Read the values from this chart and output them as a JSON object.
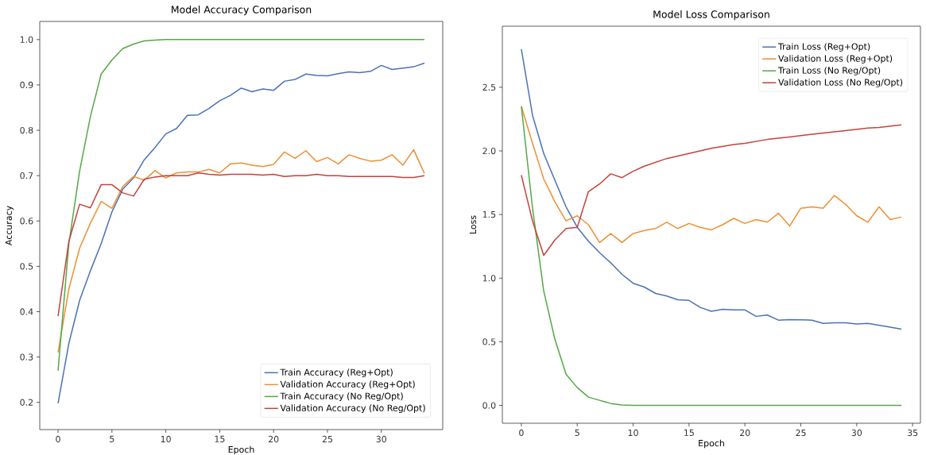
{
  "chart_data": [
    {
      "type": "line",
      "title": "Model Accuracy Comparison",
      "xlabel": "Epoch",
      "ylabel": "Accuracy",
      "x": [
        0,
        1,
        2,
        3,
        4,
        5,
        6,
        7,
        8,
        9,
        10,
        11,
        12,
        13,
        14,
        15,
        16,
        17,
        18,
        19,
        20,
        21,
        22,
        23,
        24,
        25,
        26,
        27,
        28,
        29,
        30,
        31,
        32,
        33,
        34
      ],
      "xlim": [
        -1.7,
        35.7
      ],
      "ylim": [
        0.14,
        1.04
      ],
      "xticks": [
        0,
        5,
        10,
        15,
        20,
        25,
        30
      ],
      "yticks": [
        0.2,
        0.3,
        0.4,
        0.5,
        0.6,
        0.7,
        0.8,
        0.9,
        {
          "value": 1,
          "label": "1.0"
        }
      ],
      "legend": "bottom right",
      "line_style": "solid",
      "series": [
        {
          "name": "Train Accuracy (Reg+Opt)",
          "color": "#4a72b8",
          "values": [
            0.198,
            0.33,
            0.425,
            0.49,
            0.55,
            0.62,
            0.67,
            0.695,
            0.735,
            0.762,
            0.792,
            0.804,
            0.833,
            0.834,
            0.848,
            0.865,
            0.877,
            0.893,
            0.885,
            0.891,
            0.888,
            0.908,
            0.912,
            0.924,
            0.921,
            0.92,
            0.925,
            0.929,
            0.927,
            0.93,
            0.943,
            0.934,
            0.937,
            0.94,
            0.948
          ]
        },
        {
          "name": "Validation Accuracy (Reg+Opt)",
          "color": "#ee8f35",
          "values": [
            0.31,
            0.45,
            0.54,
            0.595,
            0.643,
            0.628,
            0.676,
            0.698,
            0.69,
            0.711,
            0.695,
            0.706,
            0.708,
            0.708,
            0.714,
            0.706,
            0.726,
            0.728,
            0.723,
            0.72,
            0.725,
            0.752,
            0.738,
            0.755,
            0.731,
            0.74,
            0.726,
            0.746,
            0.738,
            0.732,
            0.734,
            0.746,
            0.723,
            0.757,
            0.705
          ]
        },
        {
          "name": "Train Accuracy (No Reg/Opt)",
          "color": "#55a846",
          "values": [
            0.27,
            0.55,
            0.71,
            0.83,
            0.924,
            0.955,
            0.98,
            0.99,
            0.997,
            0.999,
            1.0,
            1.0,
            1.0,
            1.0,
            1.0,
            1.0,
            1.0,
            1.0,
            1.0,
            1.0,
            1.0,
            1.0,
            1.0,
            1.0,
            1.0,
            1.0,
            1.0,
            1.0,
            1.0,
            1.0,
            1.0,
            1.0,
            1.0,
            1.0,
            1.0
          ]
        },
        {
          "name": "Validation Accuracy (No Reg/Opt)",
          "color": "#c4423c",
          "values": [
            0.39,
            0.555,
            0.637,
            0.629,
            0.68,
            0.68,
            0.662,
            0.655,
            0.692,
            0.697,
            0.7,
            0.7,
            0.7,
            0.706,
            0.703,
            0.701,
            0.703,
            0.703,
            0.703,
            0.701,
            0.703,
            0.698,
            0.7,
            0.7,
            0.703,
            0.7,
            0.7,
            0.698,
            0.698,
            0.698,
            0.698,
            0.698,
            0.696,
            0.696,
            0.7
          ]
        }
      ]
    },
    {
      "type": "line",
      "title": "Model Loss Comparison",
      "xlabel": "Epoch",
      "ylabel": "Loss",
      "x": [
        0,
        1,
        2,
        3,
        4,
        5,
        6,
        7,
        8,
        9,
        10,
        11,
        12,
        13,
        14,
        15,
        16,
        17,
        18,
        19,
        20,
        21,
        22,
        23,
        24,
        25,
        26,
        27,
        28,
        29,
        30,
        31,
        32,
        33,
        34
      ],
      "xlim": [
        -1.7,
        35.7
      ],
      "ylim": [
        -0.14,
        2.98
      ],
      "xticks": [
        0,
        5,
        10,
        15,
        20,
        25,
        30,
        35
      ],
      "yticks": [
        {
          "value": 0,
          "label": "0.0"
        },
        0.5,
        {
          "value": 1,
          "label": "1.0"
        },
        1.5,
        {
          "value": 2,
          "label": "2.0"
        },
        2.5
      ],
      "legend": "top right",
      "line_style": "solid",
      "series": [
        {
          "name": "Train Loss (Reg+Opt)",
          "color": "#4a72b8",
          "values": [
            2.8,
            2.28,
            1.98,
            1.77,
            1.56,
            1.4,
            1.29,
            1.2,
            1.12,
            1.03,
            0.96,
            0.93,
            0.88,
            0.86,
            0.83,
            0.825,
            0.77,
            0.74,
            0.755,
            0.75,
            0.75,
            0.7,
            0.71,
            0.67,
            0.675,
            0.673,
            0.67,
            0.645,
            0.65,
            0.65,
            0.64,
            0.645,
            0.63,
            0.615,
            0.6
          ]
        },
        {
          "name": "Validation Loss (Reg+Opt)",
          "color": "#ee8f35",
          "values": [
            2.35,
            2.06,
            1.78,
            1.6,
            1.45,
            1.49,
            1.42,
            1.28,
            1.35,
            1.28,
            1.35,
            1.375,
            1.39,
            1.44,
            1.39,
            1.43,
            1.4,
            1.38,
            1.42,
            1.47,
            1.43,
            1.46,
            1.44,
            1.51,
            1.41,
            1.55,
            1.56,
            1.55,
            1.65,
            1.58,
            1.49,
            1.44,
            1.56,
            1.46,
            1.48
          ]
        },
        {
          "name": "Train Loss (No Reg/Opt)",
          "color": "#55a846",
          "values": [
            2.35,
            1.55,
            0.9,
            0.52,
            0.245,
            0.14,
            0.065,
            0.04,
            0.015,
            0.004,
            0.0,
            0.0,
            0.0,
            0.0,
            0.0,
            0.0,
            0.0,
            0.0,
            0.0,
            0.0,
            0.0,
            0.0,
            0.0,
            0.0,
            0.0,
            0.0,
            0.0,
            0.0,
            0.0,
            0.0,
            0.0,
            0.0,
            0.0,
            0.0,
            0.0
          ]
        },
        {
          "name": "Validation Loss (No Reg/Opt)",
          "color": "#c4423c",
          "values": [
            1.81,
            1.45,
            1.18,
            1.3,
            1.39,
            1.4,
            1.68,
            1.74,
            1.82,
            1.79,
            1.84,
            1.88,
            1.91,
            1.94,
            1.96,
            1.98,
            2.0,
            2.02,
            2.035,
            2.05,
            2.06,
            2.075,
            2.09,
            2.1,
            2.11,
            2.12,
            2.13,
            2.14,
            2.15,
            2.16,
            2.17,
            2.18,
            2.185,
            2.195,
            2.205
          ]
        }
      ]
    }
  ]
}
